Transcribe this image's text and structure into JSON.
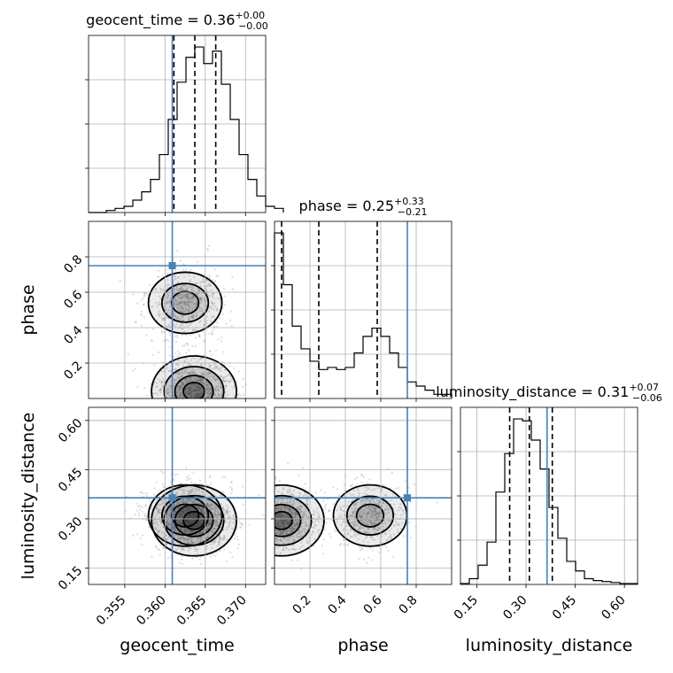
{
  "chart_data": {
    "type": "corner",
    "parameters": [
      "geocent_time",
      "phase",
      "luminosity_distance"
    ],
    "titles": [
      {
        "param": "geocent_time",
        "main": "geocent_time = 0.36",
        "sup": "+0.00",
        "sub": "−0.00"
      },
      {
        "param": "phase",
        "main": "phase = 0.25",
        "sup": "+0.33",
        "sub": "−0.21"
      },
      {
        "param": "luminosity_distance",
        "main": "luminosity_distance = 0.31",
        "sup": "+0.07",
        "sub": "−0.06"
      }
    ],
    "ranges": {
      "geocent_time": [
        0.3505,
        0.3725
      ],
      "phase": [
        0.0,
        1.0
      ],
      "luminosity_distance": [
        0.1,
        0.64
      ]
    },
    "ticks": {
      "geocent_time": {
        "values": [
          0.355,
          0.36,
          0.365,
          0.37
        ],
        "labels": [
          "0.355",
          "0.360",
          "0.365",
          "0.370"
        ]
      },
      "phase": {
        "values": [
          0.2,
          0.4,
          0.6,
          0.8
        ],
        "labels": [
          "0.2",
          "0.4",
          "0.6",
          "0.8"
        ]
      },
      "luminosity_distance": {
        "values": [
          0.15,
          0.3,
          0.45,
          0.6
        ],
        "labels": [
          "0.15",
          "0.30",
          "0.45",
          "0.60"
        ]
      }
    },
    "quantiles": {
      "geocent_time": [
        0.3611,
        0.3637,
        0.3663
      ],
      "phase": [
        0.04,
        0.25,
        0.58
      ],
      "luminosity_distance": [
        0.25,
        0.31,
        0.38
      ]
    },
    "truths": {
      "geocent_time": 0.3609,
      "phase": 0.75,
      "luminosity_distance": 0.364
    },
    "marginals": {
      "geocent_time": {
        "edges_start": 0.3505,
        "bin_width": 0.0011,
        "counts": [
          0,
          0,
          1,
          2,
          3,
          6,
          10,
          16,
          28,
          45,
          63,
          75,
          80,
          72,
          78,
          62,
          45,
          28,
          16,
          8,
          3,
          2
        ]
      },
      "phase": {
        "edges_start": 0.0,
        "bin_width": 0.05,
        "counts": [
          80,
          55,
          35,
          24,
          18,
          14,
          15,
          14,
          15,
          22,
          30,
          34,
          30,
          22,
          15,
          8,
          6,
          4,
          2,
          2
        ]
      },
      "luminosity_distance": {
        "edges_start": 0.1,
        "bin_width": 0.027,
        "counts": [
          0.5,
          3,
          10,
          22,
          48,
          68,
          86,
          85,
          75,
          60,
          40,
          24,
          12,
          7,
          3,
          2,
          1.5,
          1,
          0.5,
          0.5
        ]
      }
    },
    "density_modes": [
      {
        "geocent_time": 0.3636,
        "phase": 0.04,
        "luminosity_distance": 0.295,
        "weight": 1.0
      },
      {
        "geocent_time": 0.3625,
        "phase": 0.54,
        "luminosity_distance": 0.31,
        "weight": 0.55
      }
    ],
    "grid": true,
    "truth_color": "#4682b4"
  }
}
